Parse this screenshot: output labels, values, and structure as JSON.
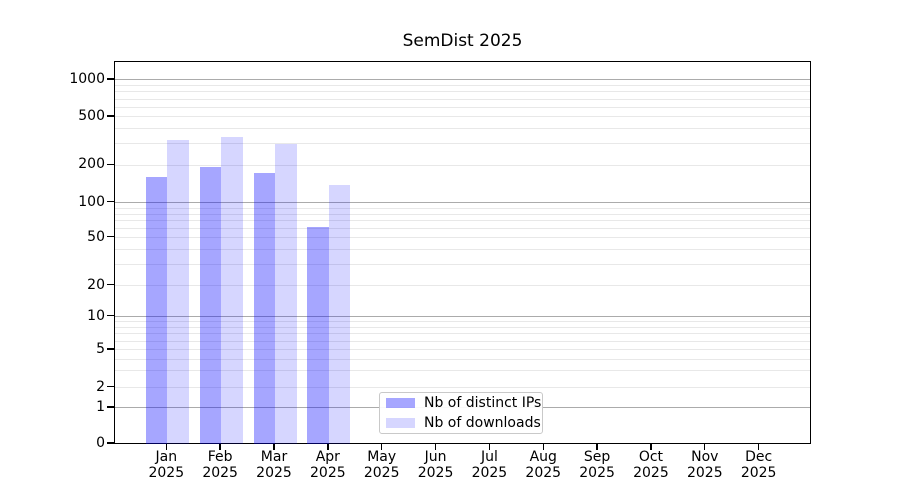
{
  "chart_data": {
    "type": "bar",
    "title": "SemDist 2025",
    "y_scale": "symlog",
    "grid": "horizontal",
    "categories": [
      "Jan",
      "Feb",
      "Mar",
      "Apr",
      "May",
      "Jun",
      "Jul",
      "Aug",
      "Sep",
      "Oct",
      "Nov",
      "Dec"
    ],
    "year_label": "2025",
    "series": [
      {
        "name": "Nb of distinct IPs",
        "color": "rgba(0,0,255,0.35)",
        "values": [
          160,
          195,
          175,
          62,
          0,
          0,
          0,
          0,
          0,
          0,
          0,
          0
        ]
      },
      {
        "name": "Nb of downloads",
        "color": "rgba(0,0,255,0.16)",
        "values": [
          325,
          345,
          300,
          140,
          0,
          0,
          0,
          0,
          0,
          0,
          0,
          0
        ]
      }
    ],
    "yticks": [
      0,
      1,
      2,
      5,
      10,
      20,
      50,
      100,
      200,
      500,
      1000
    ],
    "ylim": [
      0,
      1400
    ],
    "legend_position": "lower center",
    "colors": {
      "grid_major": "#ababab",
      "grid_minor": "#e8e8e8",
      "axis": "#000000",
      "background": "#ffffff"
    }
  }
}
